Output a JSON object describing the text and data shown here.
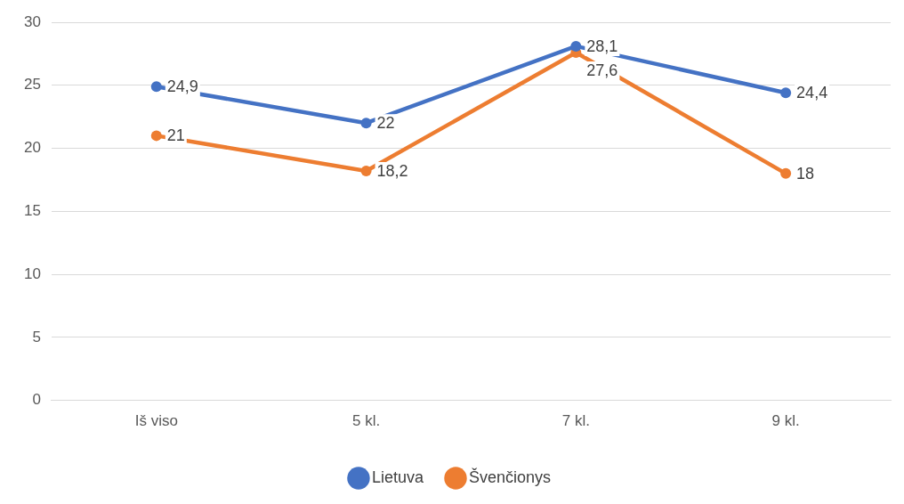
{
  "chart_data": {
    "type": "line",
    "categories": [
      "Iš viso",
      "5 kl.",
      "7 kl.",
      "9 kl."
    ],
    "series": [
      {
        "name": "Lietuva",
        "color": "#4472c4",
        "values": [
          24.9,
          22,
          28.1,
          24.4
        ],
        "value_labels": [
          "24,9",
          "22",
          "28,1",
          "24,4"
        ]
      },
      {
        "name": "Švenčionys",
        "color": "#ed7d31",
        "values": [
          21,
          18.2,
          27.6,
          18
        ],
        "value_labels": [
          "21",
          "18,2",
          "27,6",
          "18"
        ]
      }
    ],
    "ylim": [
      0,
      30
    ],
    "yticks": [
      0,
      5,
      10,
      15,
      20,
      25,
      30
    ],
    "grid": "y",
    "legend": "bottom",
    "marker": "circle",
    "line_style": "solid"
  }
}
